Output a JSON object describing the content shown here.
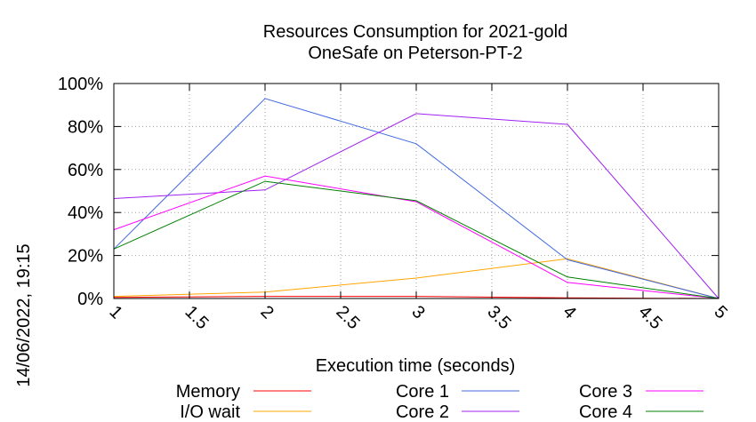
{
  "chart_data": {
    "type": "line",
    "title": "Resources Consumption for 2021-gold",
    "subtitle": "OneSafe on Peterson-PT-2",
    "xlabel": "Execution time (seconds)",
    "ylabel": "",
    "side_label": "14/06/2022, 19:15",
    "xlim": [
      1,
      5
    ],
    "ylim": [
      0,
      100
    ],
    "x_ticks": [
      "1",
      "1.5",
      "2",
      "2.5",
      "3",
      "3.5",
      "4",
      "4.5",
      "5"
    ],
    "y_ticks": [
      "0%",
      "20%",
      "40%",
      "60%",
      "80%",
      "100%"
    ],
    "grid": true,
    "legend_position": "bottom",
    "x": [
      1,
      2,
      3,
      4,
      5
    ],
    "series": [
      {
        "name": "Memory",
        "color": "#ff0000",
        "values": [
          0.5,
          1,
          1,
          0.3,
          0
        ]
      },
      {
        "name": "I/O wait",
        "color": "#ffa500",
        "values": [
          1,
          3,
          9.5,
          18.5,
          0
        ]
      },
      {
        "name": "Core 1",
        "color": "#4169e1",
        "values": [
          23,
          93,
          72,
          18,
          0
        ]
      },
      {
        "name": "Core 2",
        "color": "#a020f0",
        "values": [
          46.5,
          50.5,
          86,
          81,
          0
        ]
      },
      {
        "name": "Core 3",
        "color": "#ff00ff",
        "values": [
          32,
          57,
          45,
          7.5,
          0
        ]
      },
      {
        "name": "Core 4",
        "color": "#008000",
        "values": [
          23,
          54.5,
          45.5,
          10,
          0
        ]
      }
    ]
  }
}
